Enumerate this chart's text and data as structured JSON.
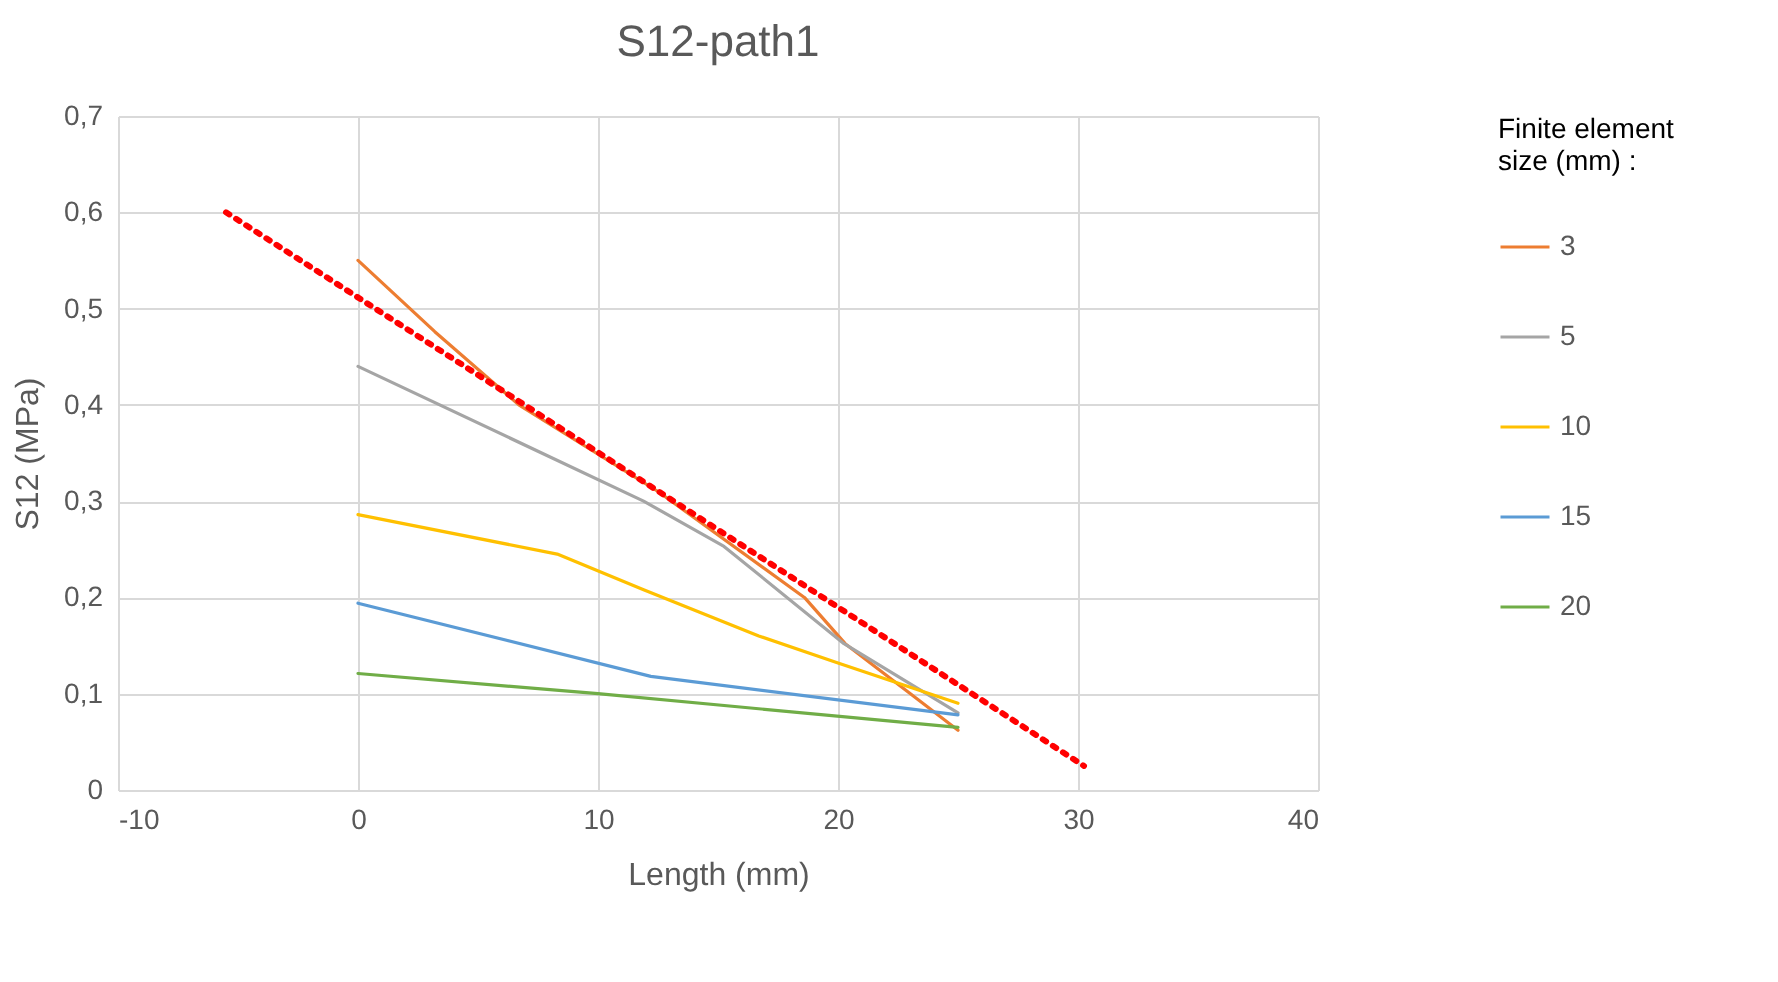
{
  "chart_data": {
    "type": "line",
    "title": "S12-path1",
    "xlabel": "Length (mm)",
    "ylabel": "S12 (MPa)",
    "legend_title": "Finite element size (mm) :",
    "legend": "right",
    "grid": true,
    "xlim": [
      -10,
      40
    ],
    "xticks": [
      -10,
      0,
      10,
      20,
      30,
      40
    ],
    "ylim": [
      0,
      0.7
    ],
    "yticks": [
      0,
      {
        "value": 0.1,
        "label": "0,1"
      },
      {
        "value": 0.2,
        "label": "0,2"
      },
      {
        "value": 0.3,
        "label": "0,3"
      },
      {
        "value": 0.4,
        "label": "0,4"
      },
      {
        "value": 0.5,
        "label": "0,5"
      },
      {
        "value": 0.6,
        "label": "0,6"
      },
      {
        "value": 0.7,
        "label": "0,7"
      }
    ],
    "series": [
      {
        "name": "3",
        "color": "#ed7d31",
        "x": [
          0,
          3.2,
          6.7,
          12.5,
          18.6,
          20.3,
          25
        ],
        "values": [
          0.55,
          0.476,
          0.4,
          0.31,
          0.2,
          0.152,
          0.062
        ]
      },
      {
        "name": "5",
        "color": "#a5a5a5",
        "x": [
          0,
          11.9,
          15.25,
          20.25,
          25
        ],
        "values": [
          0.44,
          0.3,
          0.253,
          0.152,
          0.08
        ]
      },
      {
        "name": "10",
        "color": "#ffc000",
        "x": [
          0,
          8.3,
          11.9,
          16.7,
          20,
          25
        ],
        "values": [
          0.286,
          0.245,
          0.208,
          0.16,
          0.132,
          0.09
        ]
      },
      {
        "name": "15",
        "color": "#5b9bd5",
        "x": [
          0,
          12.2,
          25
        ],
        "values": [
          0.194,
          0.118,
          0.078
        ]
      },
      {
        "name": "20",
        "color": "#70ad47",
        "x": [
          0,
          10,
          25
        ],
        "values": [
          0.121,
          0.1,
          0.065
        ]
      },
      {
        "color": "#ff0000",
        "line_style": "dotted",
        "x": [
          -5.5,
          30.25
        ],
        "values": [
          0.6,
          0.025
        ]
      }
    ]
  }
}
